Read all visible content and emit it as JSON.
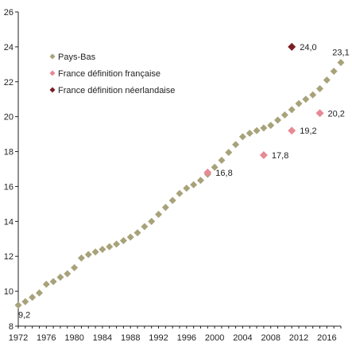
{
  "chart_data": {
    "type": "scatter",
    "title": "",
    "xlabel": "",
    "ylabel": "",
    "xlim": [
      1972,
      2018
    ],
    "ylim": [
      8,
      26
    ],
    "x_ticks": [
      1972,
      1976,
      1980,
      1984,
      1988,
      1992,
      1996,
      2000,
      2004,
      2008,
      2012,
      2016
    ],
    "y_ticks": [
      8,
      10,
      12,
      14,
      16,
      18,
      20,
      22,
      24,
      26
    ],
    "grid": false,
    "legend_position": "top-left",
    "series": [
      {
        "name": "Pays-Bas",
        "color": "#a8a27a",
        "marker": "diamond",
        "x": [
          1972,
          1973,
          1974,
          1975,
          1976,
          1977,
          1978,
          1979,
          1980,
          1981,
          1982,
          1983,
          1984,
          1985,
          1986,
          1987,
          1988,
          1989,
          1990,
          1991,
          1992,
          1993,
          1994,
          1995,
          1996,
          1997,
          1998,
          1999,
          2000,
          2001,
          2002,
          2003,
          2004,
          2005,
          2006,
          2007,
          2008,
          2009,
          2010,
          2011,
          2012,
          2013,
          2014,
          2015,
          2016,
          2017,
          2018
        ],
        "y": [
          9.2,
          9.4,
          9.65,
          9.9,
          10.4,
          10.55,
          10.8,
          11.0,
          11.35,
          11.9,
          12.1,
          12.25,
          12.4,
          12.55,
          12.7,
          12.9,
          13.1,
          13.35,
          13.7,
          14.0,
          14.4,
          14.8,
          15.2,
          15.6,
          15.9,
          16.1,
          16.35,
          16.7,
          17.1,
          17.5,
          17.95,
          18.4,
          18.85,
          19.05,
          19.2,
          19.35,
          19.5,
          19.8,
          20.1,
          20.4,
          20.75,
          21.0,
          21.25,
          21.6,
          22.1,
          22.6,
          23.1
        ]
      },
      {
        "name": "France définition française",
        "color": "#e68a94",
        "marker": "diamond",
        "x": [
          1999,
          2007,
          2011,
          2015
        ],
        "y": [
          16.8,
          17.8,
          19.2,
          20.2
        ]
      },
      {
        "name": "France définition néerlandaise",
        "color": "#7a1f24",
        "marker": "diamond",
        "x": [
          2011
        ],
        "y": [
          24.0
        ]
      }
    ],
    "annotations": [
      {
        "x": 1972,
        "y": 9.2,
        "text": "9,2",
        "pos": "below-right"
      },
      {
        "x": 2018,
        "y": 23.1,
        "text": "23,1",
        "pos": "above"
      },
      {
        "x": 2011,
        "y": 24.0,
        "text": "24,0",
        "pos": "right"
      },
      {
        "x": 1999,
        "y": 16.8,
        "text": "16,8",
        "pos": "right"
      },
      {
        "x": 2007,
        "y": 17.8,
        "text": "17,8",
        "pos": "right"
      },
      {
        "x": 2011,
        "y": 19.2,
        "text": "19,2",
        "pos": "right"
      },
      {
        "x": 2015,
        "y": 20.2,
        "text": "20,2",
        "pos": "right"
      }
    ]
  }
}
